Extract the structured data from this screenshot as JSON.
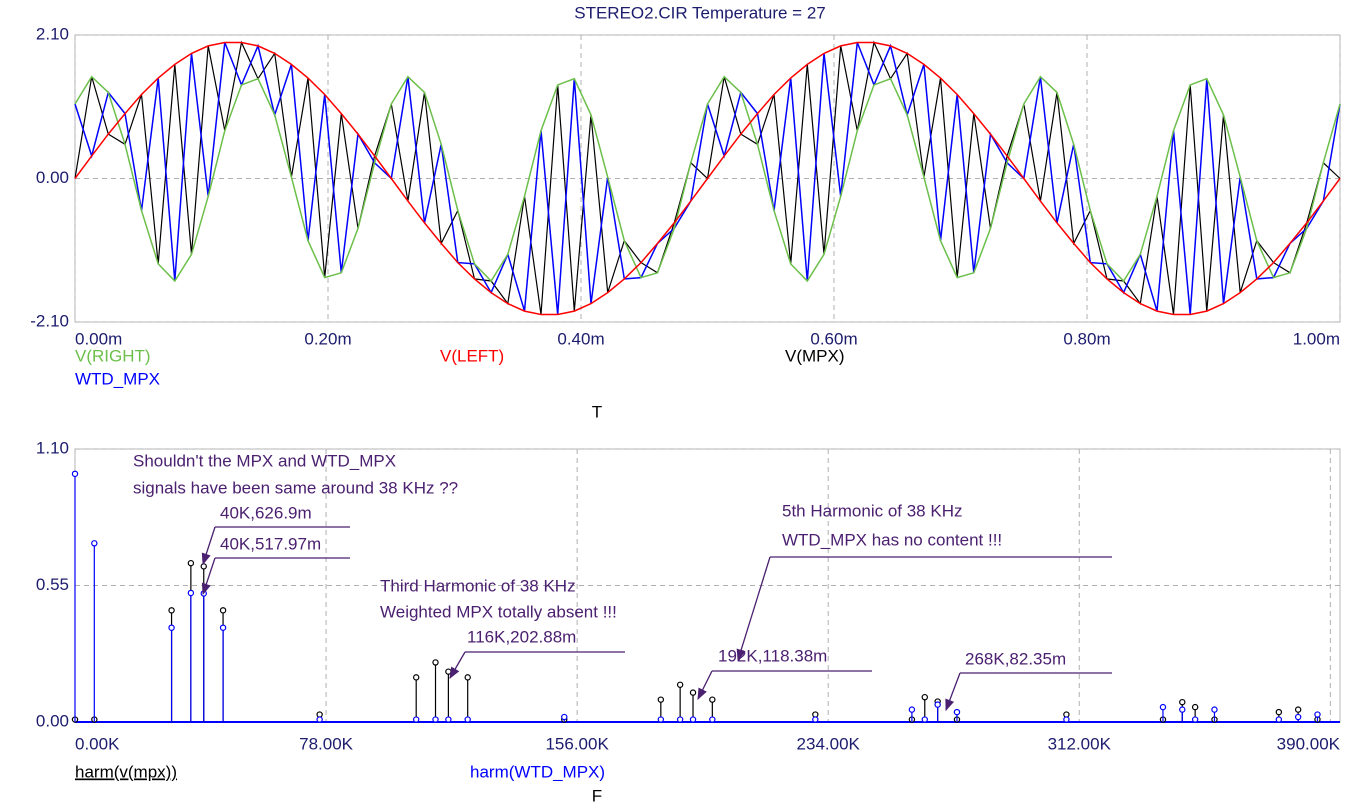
{
  "chart_data": [
    {
      "type": "line",
      "title": "STEREO2.CIR Temperature = 27",
      "x_label": "T",
      "x": [
        0,
        1.32e-05,
        2.63e-05,
        3.95e-05,
        5.26e-05,
        6.58e-05,
        7.89e-05,
        9.21e-05,
        0.0001053,
        0.0001184,
        0.0001316,
        0.0001447,
        0.0001579,
        0.0001711,
        0.0001842,
        0.0001974,
        0.0002105,
        0.0002237,
        0.0002368,
        0.00025,
        0.0002632,
        0.0002763,
        0.0002895,
        0.0003026,
        0.0003158,
        0.0003289,
        0.0003421,
        0.0003553,
        0.0003684,
        0.0003816,
        0.0003947,
        0.0004079,
        0.0004211,
        0.0004342,
        0.0004474,
        0.0004605,
        0.0004737,
        0.0004868,
        0.0005,
        0.0005132,
        0.0005263,
        0.0005395,
        0.0005526,
        0.0005658,
        0.0005789,
        0.0005921,
        0.0006053,
        0.0006184,
        0.0006316,
        0.0006447,
        0.0006579,
        0.0006711,
        0.0006842,
        0.0006974,
        0.0007105,
        0.0007237,
        0.0007368,
        0.00075,
        0.0007632,
        0.0007763,
        0.0007895,
        0.0008026,
        0.0008158,
        0.0008289,
        0.0008421,
        0.0008553,
        0.0008684,
        0.0008816,
        0.0008947,
        0.0009079,
        0.0009211,
        0.0009342,
        0.0009474,
        0.0009605,
        0.0009737,
        0.0009868,
        0.001
      ],
      "series": [
        {
          "name": "V(MPX)",
          "color": "#000000",
          "values": [
            0,
            1.49,
            0.65,
            0.5,
            1.23,
            -1.25,
            1.67,
            -1.11,
            1.94,
            0.7,
            1.99,
            1.46,
            1.83,
            0.02,
            1.47,
            -1.45,
            0.95,
            -0.73,
            0.33,
            1.09,
            -0.33,
            1.26,
            -0.95,
            -0.47,
            -1.47,
            -1.5,
            -1.83,
            -0.26,
            -1.99,
            1.37,
            -1.94,
            0.93,
            -1.67,
            -0.91,
            -1.23,
            -1.38,
            -0.65,
            0.23,
            0,
            1.49,
            0.65,
            0.5,
            1.23,
            -1.25,
            1.67,
            -1.11,
            1.94,
            0.7,
            1.99,
            1.46,
            1.83,
            0.02,
            1.47,
            -1.45,
            0.95,
            -0.73,
            0.33,
            1.09,
            -0.33,
            1.26,
            -0.95,
            -0.47,
            -1.47,
            -1.5,
            -1.83,
            -0.26,
            -1.99,
            1.37,
            -1.94,
            0.93,
            -1.67,
            -0.91,
            -1.23,
            -1.38,
            -0.65,
            0.23,
            0
          ]
        },
        {
          "name": "WTD_MPX",
          "color": "#0000ff",
          "values": [
            1.09,
            0.33,
            1.26,
            0.95,
            -0.47,
            1.47,
            -1.5,
            1.83,
            -0.26,
            1.99,
            1.37,
            1.94,
            0.93,
            1.67,
            -0.91,
            1.23,
            -1.38,
            0.65,
            0.23,
            0,
            1.49,
            -0.65,
            0.5,
            -1.23,
            -1.25,
            -1.67,
            -1.11,
            -1.94,
            0.7,
            -1.99,
            1.46,
            -1.83,
            0.02,
            -1.47,
            -1.45,
            -0.95,
            -0.73,
            -0.33,
            1.09,
            0.33,
            1.26,
            0.95,
            -0.47,
            1.47,
            -1.5,
            1.83,
            -0.26,
            1.99,
            1.37,
            1.94,
            0.93,
            1.67,
            -0.91,
            1.23,
            -1.38,
            0.65,
            0.23,
            0,
            1.49,
            -0.65,
            0.5,
            -1.23,
            -1.25,
            -1.67,
            -1.11,
            -1.94,
            0.7,
            -1.99,
            1.46,
            -1.83,
            0.02,
            -1.47,
            -1.45,
            -0.95,
            -0.73,
            -0.33,
            1.09
          ]
        },
        {
          "name": "V(RIGHT)",
          "color": "#6cbf4a",
          "values": [
            1.09,
            1.49,
            1.26,
            0.5,
            -0.47,
            -1.25,
            -1.5,
            -1.11,
            -0.26,
            0.7,
            1.37,
            1.46,
            0.93,
            0.02,
            -0.91,
            -1.45,
            -1.38,
            -0.73,
            0.23,
            1.09,
            1.49,
            1.26,
            0.5,
            -0.47,
            -1.25,
            -1.5,
            -1.11,
            -0.26,
            0.7,
            1.37,
            1.46,
            0.93,
            0.02,
            -0.91,
            -1.45,
            -1.38,
            -0.73,
            0.23,
            1.09,
            1.49,
            1.26,
            0.5,
            -0.47,
            -1.25,
            -1.5,
            -1.11,
            -0.26,
            0.7,
            1.37,
            1.46,
            0.93,
            0.02,
            -0.91,
            -1.45,
            -1.38,
            -0.73,
            0.23,
            1.09,
            1.49,
            1.26,
            0.5,
            -0.47,
            -1.25,
            -1.5,
            -1.11,
            -0.26,
            0.7,
            1.37,
            1.46,
            0.93,
            0.02,
            -0.91,
            -1.45,
            -1.38,
            -0.73,
            0.23,
            1.09
          ]
        },
        {
          "name": "V(LEFT)",
          "color": "#ff0000",
          "values": [
            0,
            0.33,
            0.65,
            0.95,
            1.23,
            1.47,
            1.67,
            1.83,
            1.94,
            1.99,
            1.99,
            1.94,
            1.83,
            1.67,
            1.47,
            1.23,
            0.95,
            0.65,
            0.33,
            0,
            -0.33,
            -0.65,
            -0.95,
            -1.23,
            -1.47,
            -1.67,
            -1.83,
            -1.94,
            -1.99,
            -1.99,
            -1.94,
            -1.83,
            -1.67,
            -1.47,
            -1.23,
            -0.95,
            -0.65,
            -0.33,
            0,
            0.33,
            0.65,
            0.95,
            1.23,
            1.47,
            1.67,
            1.83,
            1.94,
            1.99,
            1.99,
            1.94,
            1.83,
            1.67,
            1.47,
            1.23,
            0.95,
            0.65,
            0.33,
            0,
            -0.33,
            -0.65,
            -0.95,
            -1.23,
            -1.47,
            -1.67,
            -1.83,
            -1.94,
            -1.99,
            -1.99,
            -1.94,
            -1.83,
            -1.67,
            -1.47,
            -1.23,
            -0.95,
            -0.65,
            -0.33,
            0
          ]
        }
      ],
      "xlim": [
        0,
        0.001
      ],
      "xticks": [
        {
          "value": 0,
          "label": "0.00m"
        },
        {
          "value": 0.0002,
          "label": "0.20m"
        },
        {
          "value": 0.0004,
          "label": "0.40m"
        },
        {
          "value": 0.0006,
          "label": "0.60m"
        },
        {
          "value": 0.0008,
          "label": "0.80m"
        },
        {
          "value": 0.001,
          "label": "1.00m"
        }
      ],
      "ylim": [
        -2.1,
        2.1
      ],
      "yticks": [
        {
          "value": -2.1,
          "label": "-2.10"
        },
        {
          "value": 0,
          "label": "0.00"
        },
        {
          "value": 2.1,
          "label": "2.10"
        }
      ],
      "grid": true
    },
    {
      "type": "stem",
      "x_label": "F",
      "x": [
        0,
        6000,
        30000,
        36000,
        40000,
        46000,
        76000,
        106000,
        112000,
        116000,
        122000,
        152000,
        182000,
        188000,
        192000,
        198000,
        230000,
        260000,
        264000,
        268000,
        274000,
        308000,
        338000,
        344000,
        348000,
        354000,
        374000,
        380000,
        386000
      ],
      "series": [
        {
          "name": "harm(v(mpx))",
          "color": "#000000",
          "values": [
            0.01,
            0.01,
            0.45,
            0.64,
            0.6269,
            0.45,
            0.03,
            0.18,
            0.24,
            0.20288,
            0.18,
            0.01,
            0.09,
            0.15,
            0.11838,
            0.09,
            0.03,
            0.01,
            0.1,
            0.08235,
            0.01,
            0.03,
            0.01,
            0.08,
            0.06,
            0.01,
            0.04,
            0.05,
            0.01
          ]
        },
        {
          "name": "harm(WTD_MPX)",
          "color": "#0000ff",
          "values": [
            1.0,
            0.72,
            0.38,
            0.52,
            0.51797,
            0.38,
            0.01,
            0.01,
            0.01,
            0.01,
            0.01,
            0.02,
            0.01,
            0.01,
            0.01,
            0.01,
            0.01,
            0.05,
            0.01,
            0.07,
            0.04,
            0.01,
            0.06,
            0.05,
            0.01,
            0.05,
            0.01,
            0.02,
            0.03
          ]
        }
      ],
      "xlim": [
        0,
        393000
      ],
      "xticks": [
        {
          "value": 0,
          "label": "0.00K"
        },
        {
          "value": 78000,
          "label": "78.00K"
        },
        {
          "value": 156000,
          "label": "156.00K"
        },
        {
          "value": 234000,
          "label": "234.00K"
        },
        {
          "value": 312000,
          "label": "312.00K"
        },
        {
          "value": 390000,
          "label": "390.00K"
        }
      ],
      "ylim": [
        0,
        1.1
      ],
      "yticks": [
        {
          "value": 0,
          "label": "0.00"
        },
        {
          "value": 0.55,
          "label": "0.55"
        },
        {
          "value": 1.1,
          "label": "1.10"
        }
      ],
      "grid": true,
      "annotations": [
        "Shouldn't the MPX and WTD_MPX",
        "signals have been same around 38 KHz ??",
        "40K,626.9m",
        "40K,517.97m",
        "Third Harmonic of 38 KHz",
        "Weighted MPX totally absent !!!",
        "116K,202.88m",
        "5th Harmonic of 38 KHz",
        "WTD_MPX has no content !!!",
        "192K,118.38m",
        "268K,82.35m"
      ]
    }
  ]
}
